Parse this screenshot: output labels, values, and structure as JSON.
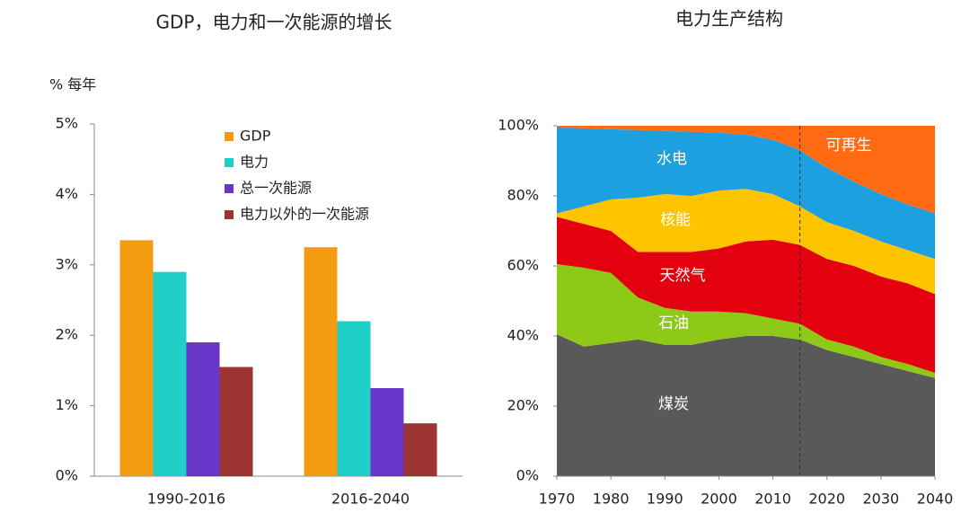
{
  "chart_data": [
    {
      "type": "bar",
      "title": "GDP，电力和一次能源的增长",
      "ylabel": "% 每年",
      "categories": [
        "1990-2016",
        "2016-2040"
      ],
      "series": [
        {
          "name": "GDP",
          "color": "#f39c12",
          "values": [
            3.35,
            3.25
          ]
        },
        {
          "name": "电力",
          "color": "#1fcfc8",
          "values": [
            2.9,
            2.2
          ]
        },
        {
          "name": "总一次能源",
          "color": "#6a35c9",
          "values": [
            1.9,
            1.25
          ]
        },
        {
          "name": "电力以外的一次能源",
          "color": "#9e3333",
          "values": [
            1.55,
            0.75
          ]
        }
      ],
      "ylim": [
        0,
        5
      ],
      "yticks": [
        {
          "value": 0,
          "label": "0%"
        },
        {
          "value": 1,
          "label": "1%"
        },
        {
          "value": 2,
          "label": "2%"
        },
        {
          "value": 3,
          "label": "3%"
        },
        {
          "value": 4,
          "label": "4%"
        },
        {
          "value": 5,
          "label": "5%"
        }
      ],
      "grid": false,
      "legend": "top-right"
    },
    {
      "type": "area",
      "stacked": true,
      "title": "电力生产结构",
      "x": [
        1970,
        1975,
        1980,
        1985,
        1990,
        1995,
        2000,
        2005,
        2010,
        2015,
        2020,
        2025,
        2030,
        2035,
        2040
      ],
      "series": [
        {
          "name": "煤炭",
          "color": "#595959",
          "values": [
            40.5,
            37,
            38,
            39,
            37.5,
            37.5,
            39,
            40,
            40,
            39,
            36,
            34,
            32,
            30,
            28
          ]
        },
        {
          "name": "石油",
          "color": "#8fc918",
          "values": [
            20,
            22.5,
            20,
            12,
            10.5,
            9.5,
            8,
            6.5,
            5,
            4.5,
            3,
            3,
            2,
            2,
            1.5
          ]
        },
        {
          "name": "天然气",
          "color": "#e3000f",
          "values": [
            13.5,
            12.5,
            12,
            13,
            16,
            17,
            18,
            20.5,
            22.5,
            22.5,
            23,
            23,
            23,
            23,
            22.5
          ]
        },
        {
          "name": "核能",
          "color": "#ffc400",
          "values": [
            1,
            5,
            9,
            15.5,
            16.5,
            16,
            16.5,
            15,
            13,
            11,
            10.5,
            10,
            10,
            9.5,
            10
          ]
        },
        {
          "name": "水电",
          "color": "#1ca0e0",
          "values": [
            24.5,
            22.3,
            20,
            19.3,
            18,
            18.3,
            16.5,
            15.5,
            15.5,
            16,
            15.5,
            14,
            13.5,
            13,
            13
          ]
        },
        {
          "name": "可再生",
          "color": "#ff6a12",
          "values": [
            0.5,
            0.7,
            1,
            1.2,
            1.5,
            1.7,
            2,
            2.5,
            4,
            7,
            12,
            16,
            19.5,
            22.5,
            25
          ]
        }
      ],
      "xlim": [
        1970,
        2040
      ],
      "xticks": [
        1970,
        1980,
        1990,
        2000,
        2010,
        2020,
        2030,
        2040
      ],
      "ylim": [
        0,
        100
      ],
      "yticks": [
        {
          "value": 0,
          "label": "0%"
        },
        {
          "value": 20,
          "label": "20%"
        },
        {
          "value": 40,
          "label": "40%"
        },
        {
          "value": 60,
          "label": "60%"
        },
        {
          "value": 80,
          "label": "80%"
        },
        {
          "value": 100,
          "label": "100%"
        }
      ],
      "grid": false,
      "forecast_start": 2015
    }
  ]
}
